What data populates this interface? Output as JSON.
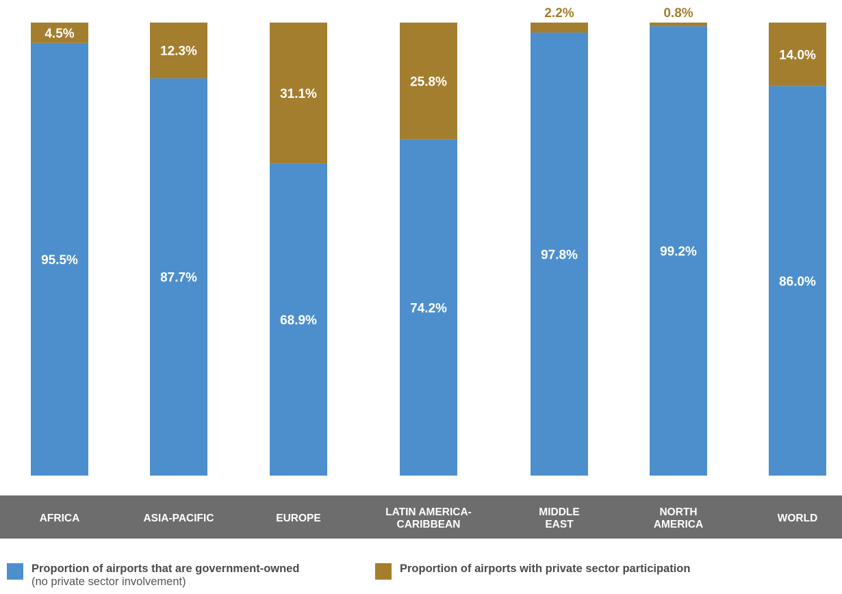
{
  "chart_data": {
    "type": "bar",
    "stacked": true,
    "percent_stacked": true,
    "categories": [
      [
        "AFRICA"
      ],
      [
        "ASIA-PACIFIC"
      ],
      [
        "EUROPE"
      ],
      [
        "LATIN AMERICA-",
        "CARIBBEAN"
      ],
      [
        "MIDDLE",
        "EAST"
      ],
      [
        "NORTH",
        "AMERICA"
      ],
      [
        "WORLD"
      ]
    ],
    "series": [
      {
        "key": "government",
        "values": [
          95.5,
          87.7,
          68.9,
          74.2,
          97.8,
          99.2,
          86.0
        ],
        "labels": [
          "95.5%",
          "87.7%",
          "68.9%",
          "74.2%",
          "97.8%",
          "99.2%",
          "86.0%"
        ],
        "color": "#4d8fcc"
      },
      {
        "key": "private",
        "values": [
          4.5,
          12.3,
          31.1,
          25.8,
          2.2,
          0.8,
          14.0
        ],
        "labels": [
          "4.5%",
          "12.3%",
          "31.1%",
          "25.8%",
          "2.2%",
          "0.8%",
          "14.0%"
        ],
        "color": "#a47e2f"
      }
    ],
    "ylim": [
      0,
      100
    ],
    "grid": false,
    "legend": {
      "placement": "bottom",
      "items": [
        {
          "line1": "Proportion of airports that are government-owned",
          "line2": "(no private sector involvement)",
          "color": "#4d8fcc"
        },
        {
          "line1": "Proportion of airports with private sector participation",
          "line2": "",
          "color": "#a47e2f"
        }
      ]
    },
    "category_band_color": "#6e6d6e",
    "private_outside_label_color": "#a47e2f"
  }
}
